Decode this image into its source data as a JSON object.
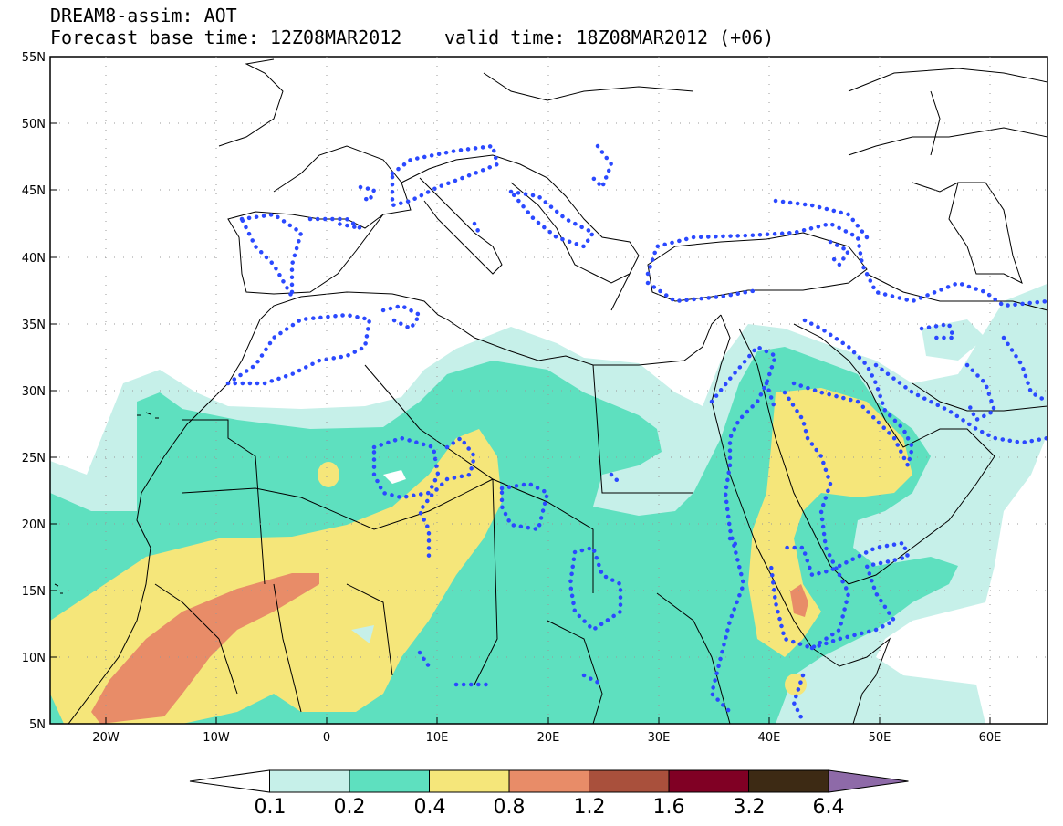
{
  "title": {
    "line1": "DREAM8-assim: AOT",
    "line2_left": "Forecast base time: 12Z08MAR2012",
    "line2_right": "valid time: 18Z08MAR2012 (+06)"
  },
  "axes": {
    "lat_labels": [
      "55N",
      "50N",
      "45N",
      "40N",
      "35N",
      "30N",
      "25N",
      "20N",
      "15N",
      "10N",
      "5N"
    ],
    "lon_labels": [
      "20W",
      "10W",
      "0",
      "10E",
      "20E",
      "30E",
      "40E",
      "50E",
      "60E"
    ]
  },
  "colorbar": {
    "labels": [
      "0.1",
      "0.2",
      "0.4",
      "0.8",
      "1.2",
      "1.6",
      "3.2",
      "6.4"
    ],
    "colors": [
      "#ffffff",
      "#c6f0e9",
      "#5ee0bf",
      "#f5e67a",
      "#e88c68",
      "#a9503c",
      "#800024",
      "#3d2a14",
      "#8e6aa8"
    ]
  },
  "map_colors": {
    "land_line": "#000000",
    "contour_dots": "#2b49ff"
  }
}
